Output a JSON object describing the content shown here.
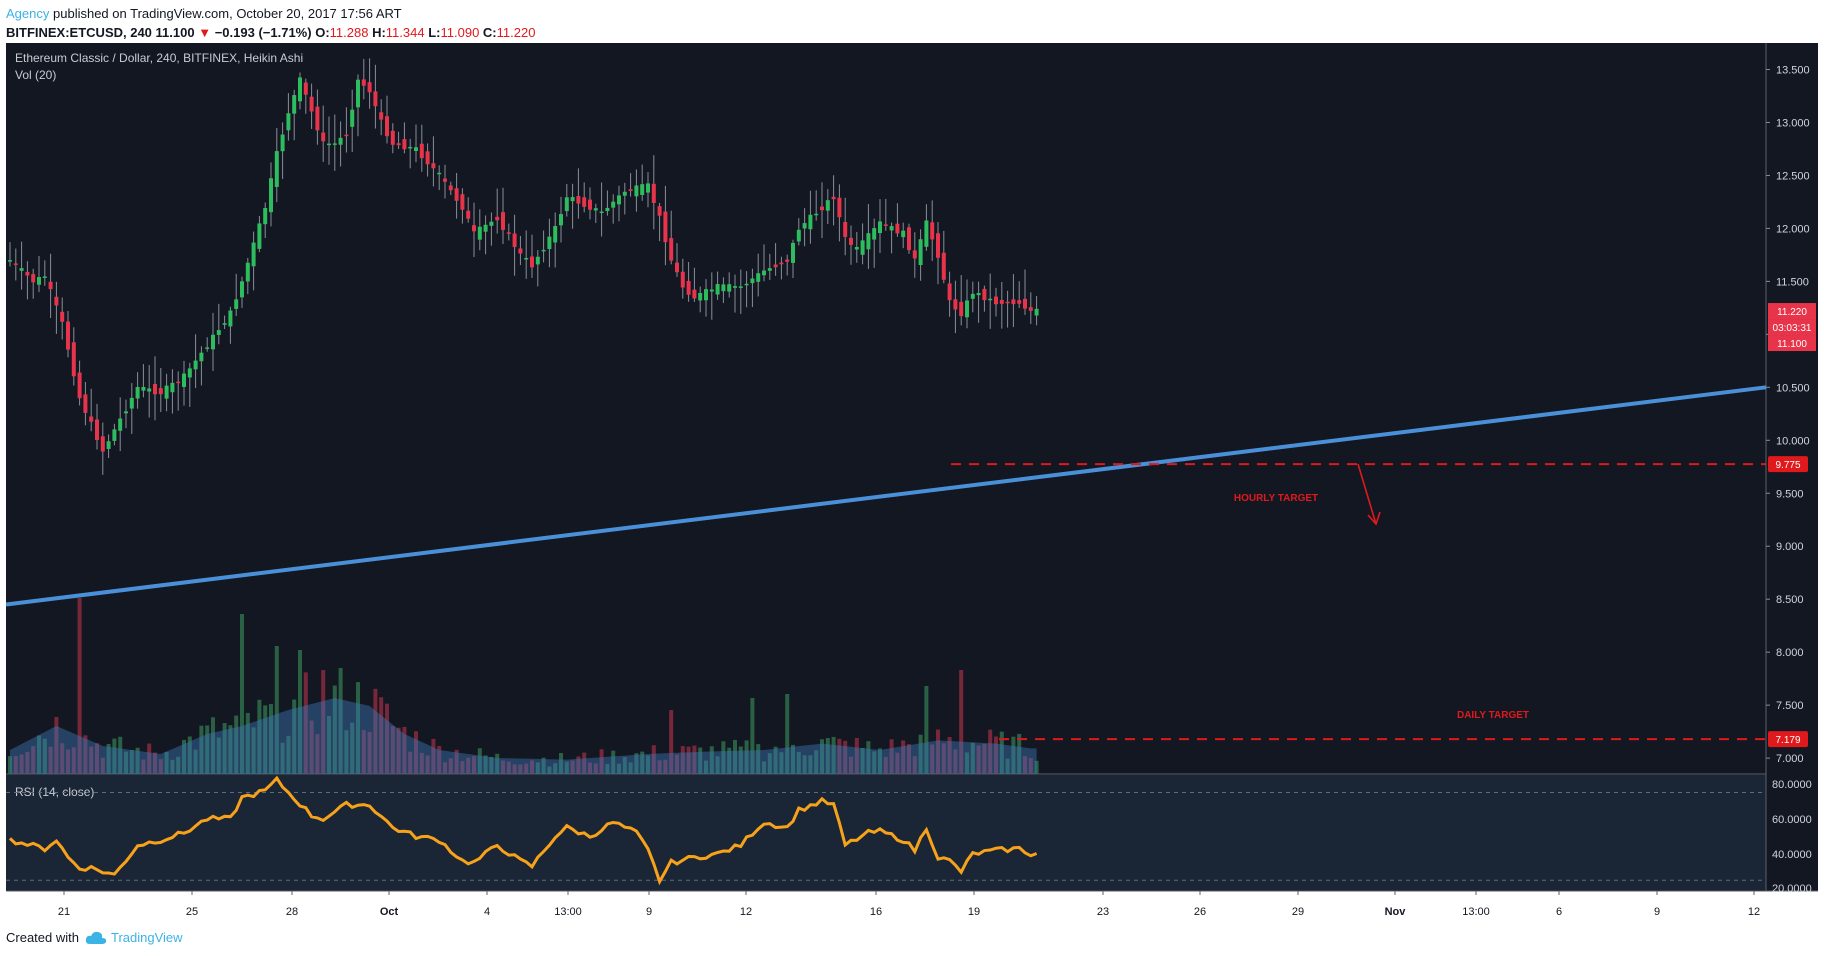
{
  "header": {
    "publisher": "Agency",
    "published_text": "published on TradingView.com, October 20, 2017 17:56 ART",
    "symbol": "BITFINEX:ETCUSD, 240",
    "last": "11.100",
    "change": "−0.193 (−1.71%)",
    "o_label": "O:",
    "o_val": "11.288",
    "h_label": "H:",
    "h_val": "11.344",
    "l_label": "L:",
    "l_val": "11.090",
    "c_label": "C:",
    "c_val": "11.220"
  },
  "footer": {
    "created_with": "Created with",
    "brand": "TradingView"
  },
  "colors": {
    "up": "#2dbd5e",
    "down": "#e8344a",
    "trend": "#4a90d9",
    "target": "#e0191c",
    "rsi": "#f7a21b",
    "bg": "#131722"
  },
  "chart_data": {
    "type": "candlestick",
    "title": "Ethereum Classic / Dollar, 240, BITFINEX, Heikin Ashi",
    "volume_label": "Vol (20)",
    "rsi_label": "RSI (14, close)",
    "y_range": [
      6.85,
      13.75
    ],
    "y_ticks": [
      "13.500",
      "13.000",
      "12.500",
      "12.000",
      "11.500",
      "11.000",
      "10.500",
      "10.000",
      "9.500",
      "9.000",
      "8.500",
      "8.000",
      "7.500",
      "7.000"
    ],
    "rsi_range": [
      20,
      85
    ],
    "rsi_ticks": [
      "80.0000",
      "60.0000",
      "40.0000",
      "20.0000"
    ],
    "x_labels": [
      "21",
      "25",
      "28",
      "Oct",
      "4",
      "13:00",
      "9",
      "12",
      "16",
      "19",
      "23",
      "26",
      "29",
      "Nov",
      "13:00",
      "6",
      "9",
      "12"
    ],
    "price_tags": {
      "close": "11.220",
      "countdown": "03:03:31",
      "last": "11.100"
    },
    "trendline": {
      "from": [
        0,
        8.45
      ],
      "to": [
        100,
        10.5
      ]
    },
    "targets": [
      {
        "label": "HOURLY TARGET",
        "value": "9.775"
      },
      {
        "label": "DAILY TARGET",
        "value": "7.179"
      }
    ],
    "anchors": [
      [
        0,
        11.7
      ],
      [
        4,
        11.5
      ],
      [
        6,
        11.55
      ],
      [
        9,
        11.1
      ],
      [
        12,
        10.4
      ],
      [
        16,
        9.9
      ],
      [
        18,
        10.1
      ],
      [
        22,
        10.5
      ],
      [
        26,
        10.45
      ],
      [
        30,
        10.6
      ],
      [
        34,
        10.9
      ],
      [
        38,
        11.2
      ],
      [
        40,
        11.5
      ],
      [
        44,
        12.2
      ],
      [
        46,
        12.7
      ],
      [
        48,
        13.1
      ],
      [
        50,
        13.4
      ],
      [
        52,
        13.1
      ],
      [
        54,
        12.8
      ],
      [
        56,
        12.8
      ],
      [
        58,
        12.9
      ],
      [
        60,
        13.4
      ],
      [
        62,
        13.3
      ],
      [
        64,
        13.0
      ],
      [
        66,
        12.8
      ],
      [
        70,
        12.75
      ],
      [
        74,
        12.5
      ],
      [
        78,
        12.2
      ],
      [
        80,
        11.95
      ],
      [
        84,
        12.1
      ],
      [
        88,
        11.75
      ],
      [
        90,
        11.65
      ],
      [
        94,
        12.0
      ],
      [
        96,
        12.3
      ],
      [
        98,
        12.25
      ],
      [
        102,
        12.15
      ],
      [
        106,
        12.35
      ],
      [
        110,
        12.4
      ],
      [
        112,
        12.1
      ],
      [
        114,
        11.7
      ],
      [
        116,
        11.45
      ],
      [
        118,
        11.35
      ],
      [
        122,
        11.45
      ],
      [
        126,
        11.45
      ],
      [
        130,
        11.6
      ],
      [
        134,
        11.7
      ],
      [
        136,
        12.0
      ],
      [
        140,
        12.2
      ],
      [
        142,
        12.3
      ],
      [
        144,
        11.9
      ],
      [
        146,
        11.8
      ],
      [
        150,
        12.05
      ],
      [
        154,
        11.95
      ],
      [
        156,
        11.7
      ],
      [
        158,
        12.05
      ],
      [
        160,
        11.75
      ],
      [
        162,
        11.3
      ],
      [
        164,
        11.2
      ],
      [
        166,
        11.4
      ],
      [
        170,
        11.3
      ],
      [
        174,
        11.3
      ],
      [
        176,
        11.22
      ]
    ],
    "volume_anchors": [
      [
        0,
        0.3
      ],
      [
        8,
        0.6
      ],
      [
        16,
        0.35
      ],
      [
        26,
        0.25
      ],
      [
        34,
        0.5
      ],
      [
        40,
        0.6
      ],
      [
        48,
        0.8
      ],
      [
        56,
        0.95
      ],
      [
        62,
        0.85
      ],
      [
        68,
        0.5
      ],
      [
        74,
        0.3
      ],
      [
        84,
        0.2
      ],
      [
        96,
        0.18
      ],
      [
        110,
        0.25
      ],
      [
        120,
        0.28
      ],
      [
        130,
        0.3
      ],
      [
        140,
        0.38
      ],
      [
        150,
        0.3
      ],
      [
        160,
        0.42
      ],
      [
        170,
        0.38
      ],
      [
        176,
        0.32
      ]
    ],
    "volume_spikes": [
      [
        12,
        2.2
      ],
      [
        40,
        2.0
      ],
      [
        46,
        1.6
      ],
      [
        50,
        1.55
      ],
      [
        54,
        1.3
      ],
      [
        114,
        0.8
      ],
      [
        128,
        0.95
      ],
      [
        134,
        1.0
      ],
      [
        158,
        1.1
      ],
      [
        164,
        1.3
      ]
    ],
    "rsi_anchors": [
      [
        0,
        48
      ],
      [
        6,
        43
      ],
      [
        8,
        48
      ],
      [
        10,
        38
      ],
      [
        12,
        32
      ],
      [
        14,
        32
      ],
      [
        18,
        28
      ],
      [
        22,
        45
      ],
      [
        26,
        48
      ],
      [
        30,
        52
      ],
      [
        34,
        60
      ],
      [
        38,
        60
      ],
      [
        40,
        72
      ],
      [
        44,
        76
      ],
      [
        46,
        82
      ],
      [
        48,
        75
      ],
      [
        52,
        62
      ],
      [
        54,
        60
      ],
      [
        58,
        68
      ],
      [
        62,
        68
      ],
      [
        66,
        55
      ],
      [
        70,
        50
      ],
      [
        74,
        48
      ],
      [
        78,
        36
      ],
      [
        80,
        35
      ],
      [
        84,
        45
      ],
      [
        88,
        36
      ],
      [
        90,
        33
      ],
      [
        94,
        50
      ],
      [
        96,
        55
      ],
      [
        100,
        50
      ],
      [
        104,
        58
      ],
      [
        108,
        52
      ],
      [
        110,
        42
      ],
      [
        112,
        25
      ],
      [
        114,
        35
      ],
      [
        118,
        38
      ],
      [
        122,
        40
      ],
      [
        126,
        45
      ],
      [
        128,
        52
      ],
      [
        130,
        58
      ],
      [
        134,
        55
      ],
      [
        136,
        65
      ],
      [
        140,
        70
      ],
      [
        142,
        68
      ],
      [
        144,
        45
      ],
      [
        148,
        52
      ],
      [
        150,
        53
      ],
      [
        154,
        48
      ],
      [
        156,
        42
      ],
      [
        158,
        55
      ],
      [
        160,
        38
      ],
      [
        162,
        36
      ],
      [
        164,
        30
      ],
      [
        166,
        40
      ],
      [
        170,
        42
      ],
      [
        174,
        43
      ],
      [
        176,
        40
      ]
    ]
  }
}
